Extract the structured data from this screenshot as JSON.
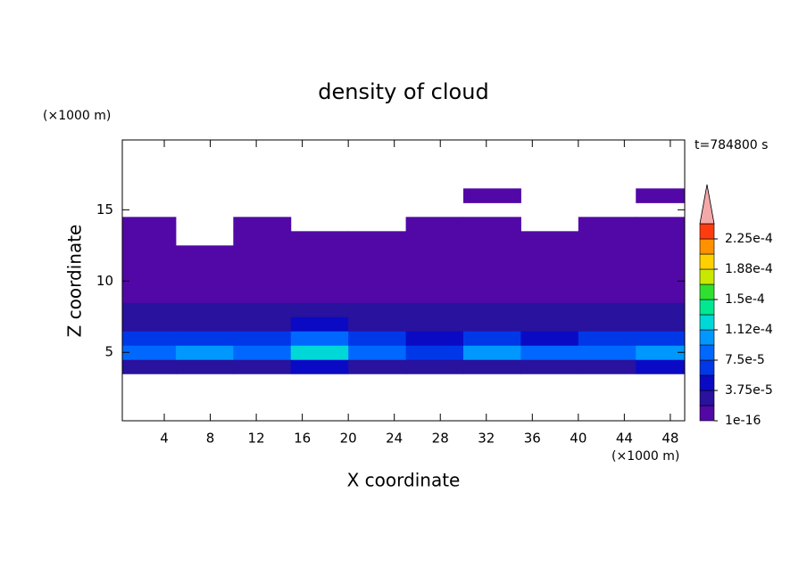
{
  "chart_data": {
    "type": "contour",
    "title": "density of cloud",
    "x_label": "X coordinate",
    "y_label": "Z coordinate",
    "x_unit": "(×1000 m)",
    "y_unit": "(×1000 m)",
    "annotation": "t=784800 s",
    "x": [
      2.5,
      7.5,
      12.5,
      17.5,
      22.5,
      27.5,
      32.5,
      37.5,
      42.5,
      47.5
    ],
    "z": [
      4,
      5,
      6,
      7,
      8,
      9,
      10,
      11,
      12,
      13,
      14,
      16
    ],
    "values": [
      [
        3e-05,
        3.5e-05,
        3e-05,
        4e-05,
        3.5e-05,
        3e-05,
        3.5e-05,
        3e-05,
        3e-05,
        4e-05
      ],
      [
        8e-05,
        0.0001,
        8e-05,
        0.000115,
        9e-05,
        7e-05,
        0.0001,
        8e-05,
        8e-05,
        0.000105
      ],
      [
        6e-05,
        7e-05,
        6e-05,
        9e-05,
        7e-05,
        5e-05,
        6e-05,
        5.5e-05,
        6e-05,
        6.5e-05
      ],
      [
        2.5e-05,
        3e-05,
        3e-05,
        4e-05,
        3e-05,
        2.5e-05,
        3e-05,
        2.5e-05,
        2.5e-05,
        3e-05
      ],
      [
        2e-05,
        2e-05,
        2e-05,
        2.5e-05,
        2e-05,
        2e-05,
        2e-05,
        2e-05,
        2e-05,
        2e-05
      ],
      [
        1.5e-05,
        1e-05,
        1.5e-05,
        1e-05,
        1e-05,
        1e-05,
        1.5e-05,
        1e-05,
        1e-05,
        1.5e-05
      ],
      [
        1e-05,
        1e-05,
        1e-05,
        1e-05,
        1e-05,
        1e-05,
        1e-05,
        1e-05,
        1e-05,
        1e-05
      ],
      [
        1e-05,
        1e-05,
        1e-05,
        1e-05,
        1e-05,
        1e-05,
        1e-05,
        1e-05,
        1e-05,
        1e-05
      ],
      [
        1e-05,
        1e-05,
        1e-05,
        1e-05,
        1e-05,
        1e-05,
        1e-05,
        1e-05,
        1e-05,
        1e-05
      ],
      [
        1e-05,
        null,
        1e-05,
        1e-05,
        1e-05,
        1e-05,
        1e-05,
        1e-05,
        1e-05,
        1e-05
      ],
      [
        1e-05,
        null,
        1e-05,
        null,
        null,
        1e-05,
        1e-05,
        null,
        1e-05,
        1e-05
      ],
      [
        null,
        null,
        null,
        null,
        null,
        null,
        1e-05,
        null,
        null,
        1e-05
      ]
    ],
    "levels": [
      1e-16,
      1.875e-05,
      3.75e-05,
      5.625e-05,
      7.5e-05,
      9.375e-05,
      0.0001125,
      0.00013125,
      0.00015,
      0.00016875,
      0.0001875,
      0.00020625,
      0.000225,
      0.00024375
    ],
    "colors": [
      "#5208a6",
      "#28129e",
      "#0a0ac4",
      "#0038e8",
      "#0068ff",
      "#0098ff",
      "#00d8d8",
      "#00e890",
      "#30e030",
      "#c8e800",
      "#ffd000",
      "#ff9000",
      "#ff3c10"
    ],
    "over_color": "#f4a8a8",
    "cbar_ticks": [
      {
        "value": 1e-16,
        "label": "1e-16"
      },
      {
        "value": 3.75e-05,
        "label": "3.75e-5"
      },
      {
        "value": 7.5e-05,
        "label": "7.5e-5"
      },
      {
        "value": 0.0001125,
        "label": "1.12e-4"
      },
      {
        "value": 0.00015,
        "label": "1.5e-4"
      },
      {
        "value": 0.0001875,
        "label": "1.88e-4"
      },
      {
        "value": 0.000225,
        "label": "2.25e-4"
      }
    ],
    "xlim": [
      0.35,
      49.25
    ],
    "ylim": [
      0.2,
      19.9
    ],
    "xticks": [
      4,
      8,
      12,
      16,
      20,
      24,
      28,
      32,
      36,
      40,
      44,
      48
    ],
    "yticks": [
      5,
      10,
      15
    ]
  }
}
